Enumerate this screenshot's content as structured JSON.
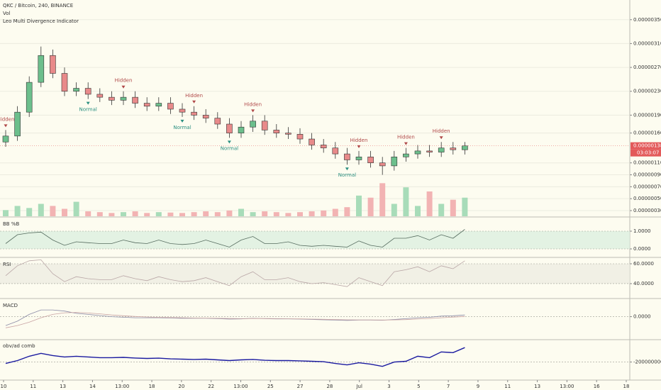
{
  "chart_data": [
    {
      "type": "candlestick",
      "title": "QKC / Bitcoin, 240, BINANCE",
      "indicator": "Leo Multi Divergence Indicator",
      "ylim": [
        2.05e-07,
        3.83e-06
      ],
      "yticks": [
        {
          "value": 3.5e-06,
          "label": "0.000003500"
        },
        {
          "value": 3.1e-06,
          "label": "0.000003100"
        },
        {
          "value": 2.7e-06,
          "label": "0.000002700"
        },
        {
          "value": 2.3e-06,
          "label": "0.000002300"
        },
        {
          "value": 1.9e-06,
          "label": "0.000001900"
        },
        {
          "value": 1.6e-06,
          "label": "0.000001600"
        },
        {
          "value": 1.1e-06,
          "label": "0.000001100"
        },
        {
          "value": 9e-07,
          "label": "0.000000900"
        },
        {
          "value": 7e-07,
          "label": "0.000000700"
        },
        {
          "value": 5e-07,
          "label": "0.000000500"
        },
        {
          "value": 3e-07,
          "label": "0.000000300"
        }
      ],
      "grid": true,
      "up_color": "#6cbf8c",
      "down_color": "#e88a8a",
      "open": [
        1.45e-06,
        1.55e-06,
        1.95e-06,
        2.45e-06,
        2.9e-06,
        2.6e-06,
        2.3e-06,
        2.35e-06,
        2.25e-06,
        2.2e-06,
        2.15e-06,
        2.2e-06,
        2.1e-06,
        2.05e-06,
        2.1e-06,
        2e-06,
        1.95e-06,
        1.9e-06,
        1.85e-06,
        1.75e-06,
        1.6e-06,
        1.7e-06,
        1.8e-06,
        1.65e-06,
        1.6e-06,
        1.58e-06,
        1.5e-06,
        1.4e-06,
        1.35e-06,
        1.25e-06,
        1.15e-06,
        1.2e-06,
        1.1e-06,
        1.05e-06,
        1.2e-06,
        1.25e-06,
        1.3e-06,
        1.28e-06,
        1.35e-06,
        1.32e-06
      ],
      "high": [
        1.65e-06,
        2.05e-06,
        2.55e-06,
        3.05e-06,
        3e-06,
        2.7e-06,
        2.45e-06,
        2.45e-06,
        2.35e-06,
        2.3e-06,
        2.3e-06,
        2.3e-06,
        2.2e-06,
        2.2e-06,
        2.2e-06,
        2.1e-06,
        2.05e-06,
        2e-06,
        1.95e-06,
        1.85e-06,
        1.8e-06,
        1.9e-06,
        1.9e-06,
        1.75e-06,
        1.7e-06,
        1.68e-06,
        1.6e-06,
        1.5e-06,
        1.45e-06,
        1.35e-06,
        1.3e-06,
        1.3e-06,
        1.2e-06,
        1.3e-06,
        1.35e-06,
        1.4e-06,
        1.4e-06,
        1.45e-06,
        1.45e-06,
        1.45e-06
      ],
      "low": [
        1.37e-06,
        1.47e-06,
        1.87e-06,
        2.37e-06,
        2.52e-06,
        2.22e-06,
        2.22e-06,
        2.17e-06,
        2.12e-06,
        2.07e-06,
        2.07e-06,
        2.02e-06,
        1.97e-06,
        1.97e-06,
        1.92e-06,
        1.87e-06,
        1.82e-06,
        1.77e-06,
        1.67e-06,
        1.52e-06,
        1.52e-06,
        1.62e-06,
        1.57e-06,
        1.52e-06,
        1.5e-06,
        1.42e-06,
        1.32e-06,
        1.27e-06,
        1.17e-06,
        1.07e-06,
        1.07e-06,
        1.02e-06,
        9e-07,
        9.7e-07,
        1.12e-06,
        1.17e-06,
        1.2e-06,
        1.2e-06,
        1.24e-06,
        1.24e-06
      ],
      "close": [
        1.55e-06,
        1.95e-06,
        2.45e-06,
        2.9e-06,
        2.6e-06,
        2.3e-06,
        2.35e-06,
        2.25e-06,
        2.2e-06,
        2.15e-06,
        2.2e-06,
        2.1e-06,
        2.05e-06,
        2.1e-06,
        2e-06,
        1.95e-06,
        1.9e-06,
        1.85e-06,
        1.75e-06,
        1.6e-06,
        1.7e-06,
        1.8e-06,
        1.65e-06,
        1.6e-06,
        1.58e-06,
        1.5e-06,
        1.4e-06,
        1.35e-06,
        1.25e-06,
        1.15e-06,
        1.2e-06,
        1.1e-06,
        1.05e-06,
        1.2e-06,
        1.25e-06,
        1.3e-06,
        1.28e-06,
        1.35e-06,
        1.32e-06,
        1.386e-06
      ],
      "annotations": [
        {
          "text": "Hidden",
          "candle": 0,
          "position": "above",
          "color": "#b04848"
        },
        {
          "text": "Normal",
          "candle": 7,
          "position": "below",
          "color": "#2a8f80"
        },
        {
          "text": "Hidden",
          "candle": 10,
          "position": "above",
          "color": "#b04848"
        },
        {
          "text": "Normal",
          "candle": 15,
          "position": "below",
          "color": "#2a8f80"
        },
        {
          "text": "Hidden",
          "candle": 16,
          "position": "above",
          "color": "#b04848"
        },
        {
          "text": "Normal",
          "candle": 19,
          "position": "below",
          "color": "#2a8f80"
        },
        {
          "text": "Hidden",
          "candle": 21,
          "position": "above",
          "color": "#b04848"
        },
        {
          "text": "Normal",
          "candle": 29,
          "position": "below",
          "color": "#2a8f80"
        },
        {
          "text": "Hidden",
          "candle": 30,
          "position": "above",
          "color": "#b04848"
        },
        {
          "text": "Hidden",
          "candle": 34,
          "position": "above",
          "color": "#b04848"
        },
        {
          "text": "Hidden",
          "candle": 37,
          "position": "above",
          "color": "#b04848"
        }
      ],
      "last_price": {
        "value": 1.386e-06,
        "label": "0.000001386"
      },
      "countdown": "03:03:07",
      "xlabels": [
        "10",
        "11",
        "13",
        "14",
        "13:00",
        "18",
        "20",
        "22",
        "13:00",
        "25",
        "27",
        "28",
        "Jul",
        "3",
        "5",
        "7",
        "9",
        "11",
        "13",
        "13:00",
        "16",
        "18"
      ]
    },
    {
      "type": "bar",
      "title": "Vol",
      "ylim": [
        0,
        180
      ],
      "up_color": "#a8dcb9",
      "down_color": "#f2b3b3",
      "values": [
        15,
        25,
        20,
        30,
        25,
        18,
        35,
        12,
        10,
        8,
        10,
        12,
        8,
        10,
        9,
        8,
        10,
        12,
        10,
        14,
        18,
        10,
        12,
        10,
        8,
        10,
        12,
        14,
        18,
        22,
        50,
        45,
        80,
        30,
        70,
        25,
        60,
        30,
        40,
        45
      ]
    },
    {
      "type": "line",
      "title": "BB %B",
      "ylim": [
        -0.44,
        1.72
      ],
      "band_fill": "#dcefe0",
      "yticks": [
        {
          "value": 1,
          "label": "1.0000"
        },
        {
          "value": 0,
          "label": "0.0000"
        }
      ],
      "series": [
        {
          "color": "#556b5e",
          "values": [
            0.3,
            0.8,
            0.9,
            0.95,
            0.5,
            0.2,
            0.4,
            0.35,
            0.3,
            0.3,
            0.5,
            0.35,
            0.3,
            0.5,
            0.3,
            0.25,
            0.3,
            0.5,
            0.3,
            0.1,
            0.5,
            0.7,
            0.3,
            0.3,
            0.4,
            0.2,
            0.15,
            0.2,
            0.15,
            0.1,
            0.45,
            0.2,
            0.1,
            0.6,
            0.6,
            0.75,
            0.5,
            0.8,
            0.6,
            1.1
          ]
        }
      ]
    },
    {
      "type": "line",
      "title": "RSI",
      "ylim": [
        25.7,
        65
      ],
      "band_fill": "#eeece2",
      "yticks": [
        {
          "value": 60,
          "label": "60.0000"
        },
        {
          "value": 40,
          "label": "40.0000"
        }
      ],
      "series": [
        {
          "color": "#b9a6a6",
          "values": [
            48,
            58,
            63,
            64,
            50,
            42,
            47,
            45,
            44,
            44,
            48,
            45,
            43,
            47,
            44,
            42,
            43,
            46,
            42,
            38,
            47,
            52,
            44,
            44,
            46,
            42,
            40,
            41,
            39,
            37,
            46,
            42,
            38,
            52,
            54,
            57,
            52,
            58,
            55,
            63
          ]
        }
      ]
    },
    {
      "type": "line",
      "title": "MACD",
      "ylim": [
        -2e-07,
        1.5e-07
      ],
      "yticks": [
        {
          "value": 0,
          "label": "0.0000"
        }
      ],
      "series": [
        {
          "color": "#8a8aa6",
          "values": [
            -8e-08,
            -4e-08,
            2e-08,
            6e-08,
            6e-08,
            5e-08,
            3e-08,
            2e-08,
            1e-08,
            0,
            -5e-09,
            -1e-08,
            -1e-08,
            -1e-08,
            -1.2e-08,
            -1.5e-08,
            -1.5e-08,
            -1.5e-08,
            -1.8e-08,
            -2.2e-08,
            -2e-08,
            -1.5e-08,
            -1.8e-08,
            -2e-08,
            -2e-08,
            -2.2e-08,
            -2.5e-08,
            -2.8e-08,
            -3e-08,
            -3.3e-08,
            -3e-08,
            -3e-08,
            -3.2e-08,
            -2.5e-08,
            -1.8e-08,
            -1e-08,
            -5e-09,
            5e-09,
            8e-09,
            1.5e-08
          ]
        },
        {
          "color": "#c9a3a3",
          "values": [
            -1e-07,
            -8e-08,
            -5e-08,
            -1e-08,
            2e-08,
            3.5e-08,
            3.8e-08,
            3.3e-08,
            2.5e-08,
            1.5e-08,
            8e-09,
            2e-09,
            -3e-09,
            -6e-09,
            -8e-09,
            -1e-08,
            -1.2e-08,
            -1.3e-08,
            -1.5e-08,
            -1.7e-08,
            -1.8e-08,
            -1.7e-08,
            -1.7e-08,
            -1.8e-08,
            -1.9e-08,
            -2e-08,
            -2.2e-08,
            -2.4e-08,
            -2.6e-08,
            -2.8e-08,
            -2.9e-08,
            -2.9e-08,
            -3e-08,
            -2.9e-08,
            -2.6e-08,
            -2.1e-08,
            -1.6e-08,
            -1e-08,
            -4e-09,
            2e-09
          ]
        }
      ]
    },
    {
      "type": "line",
      "title": "obv/ad comb",
      "ylim": [
        -320000000.0,
        -50000000.0
      ],
      "yticks": [
        {
          "value": -200000000.0,
          "label": "-200000000.0000"
        }
      ],
      "series": [
        {
          "color": "#1a1aa0",
          "values": [
            -210000000.0,
            -190000000.0,
            -160000000.0,
            -140000000.0,
            -155000000.0,
            -165000000.0,
            -160000000.0,
            -165000000.0,
            -170000000.0,
            -170000000.0,
            -168000000.0,
            -172000000.0,
            -175000000.0,
            -173000000.0,
            -178000000.0,
            -180000000.0,
            -182000000.0,
            -180000000.0,
            -185000000.0,
            -190000000.0,
            -185000000.0,
            -182000000.0,
            -188000000.0,
            -190000000.0,
            -190000000.0,
            -192000000.0,
            -195000000.0,
            -198000000.0,
            -210000000.0,
            -220000000.0,
            -205000000.0,
            -215000000.0,
            -230000000.0,
            -200000000.0,
            -195000000.0,
            -160000000.0,
            -170000000.0,
            -130000000.0,
            -135000000.0,
            -100000000.0
          ]
        }
      ]
    }
  ]
}
